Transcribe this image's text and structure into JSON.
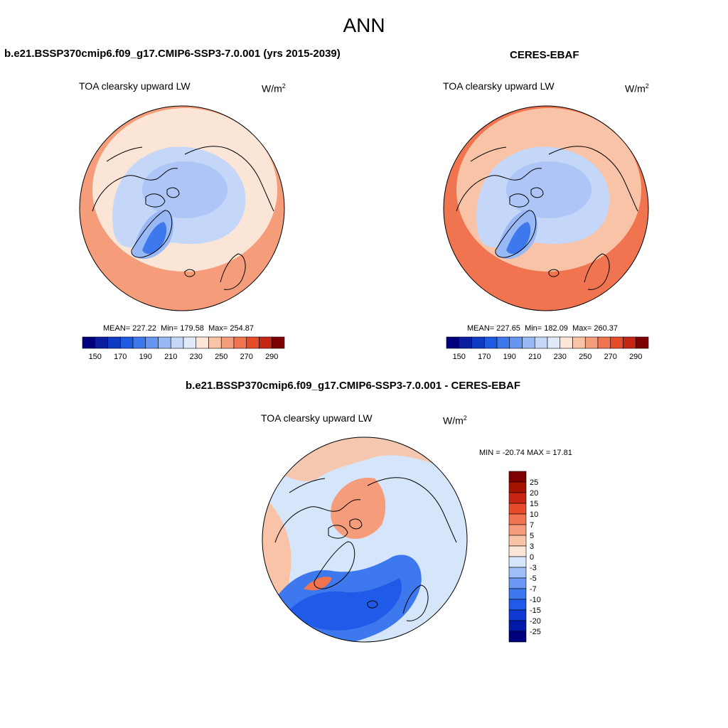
{
  "figure": {
    "season": "ANN"
  },
  "chart_data": [
    {
      "type": "heatmap",
      "projection": "polar stereographic (north)",
      "title": "b.e21.BSSP370cmip6.f09_g17.CMIP6-SSP3-7.0.001 (yrs 2015-2039)",
      "variable": "TOA clearsky upward LW",
      "units": "W/m",
      "units_exp": "2",
      "stats": {
        "mean_label": "MEAN=",
        "mean": "227.22",
        "min_label": "Min=",
        "min": "179.58",
        "max_label": "Max=",
        "max": "254.87"
      },
      "colorbar": {
        "levels": [
          150,
          160,
          170,
          180,
          190,
          200,
          210,
          220,
          230,
          240,
          250,
          260,
          270,
          280,
          290
        ],
        "tick_labels": [
          "150",
          "170",
          "190",
          "210",
          "230",
          "250",
          "270",
          "290"
        ],
        "colors": [
          "#00007f",
          "#0a1f9e",
          "#0f3bc4",
          "#1f5be0",
          "#3d78ec",
          "#6796f2",
          "#99b8f6",
          "#c5d7f8",
          "#e0eaf8",
          "#fbe5d6",
          "#f8c3a6",
          "#f59d7a",
          "#ef744f",
          "#e64b2a",
          "#c82615",
          "#7f0000"
        ]
      },
      "field_colors": {
        "ring": "#f59d7a",
        "mid": "#fbe5d6",
        "arctic": "#c5d7f8",
        "greenland": "#99b8f6",
        "greenland_core": "#3d78ec"
      }
    },
    {
      "type": "heatmap",
      "projection": "polar stereographic (north)",
      "title": "CERES-EBAF",
      "variable": "TOA clearsky upward LW",
      "units": "W/m",
      "units_exp": "2",
      "stats": {
        "mean_label": "MEAN=",
        "mean": "227.65",
        "min_label": "Min=",
        "min": "182.09",
        "max_label": "Max=",
        "max": "260.37"
      },
      "colorbar": {
        "levels": [
          150,
          160,
          170,
          180,
          190,
          200,
          210,
          220,
          230,
          240,
          250,
          260,
          270,
          280,
          290
        ],
        "tick_labels": [
          "150",
          "170",
          "190",
          "210",
          "230",
          "250",
          "270",
          "290"
        ],
        "colors": [
          "#00007f",
          "#0a1f9e",
          "#0f3bc4",
          "#1f5be0",
          "#3d78ec",
          "#6796f2",
          "#99b8f6",
          "#c5d7f8",
          "#e0eaf8",
          "#fbe5d6",
          "#f8c3a6",
          "#f59d7a",
          "#ef744f",
          "#e64b2a",
          "#c82615",
          "#7f0000"
        ]
      },
      "field_colors": {
        "ring": "#ef744f",
        "mid": "#f8c3a6",
        "arctic": "#c5d7f8",
        "greenland": "#99b8f6",
        "greenland_core": "#3d78ec"
      }
    },
    {
      "type": "heatmap",
      "projection": "polar stereographic (north)",
      "title": "b.e21.BSSP370cmip6.f09_g17.CMIP6-SSP3-7.0.001 - CERES-EBAF",
      "variable": "TOA clearsky upward LW",
      "units": "W/m",
      "units_exp": "2",
      "stats": {
        "text": "MIN = -20.74 MAX =  17.81",
        "min": "-20.74",
        "max": "17.81"
      },
      "colorbar": {
        "levels": [
          -25,
          -20,
          -15,
          -10,
          -7,
          -5,
          -3,
          0,
          3,
          5,
          7,
          10,
          15,
          20,
          25
        ],
        "tick_labels": [
          "25",
          "20",
          "15",
          "10",
          "7",
          "5",
          "3",
          "0",
          "-3",
          "-5",
          "-7",
          "-10",
          "-15",
          "-20",
          "-25"
        ],
        "colors": [
          "#00007f",
          "#0019a8",
          "#0f3bd4",
          "#1f5be8",
          "#3d78ee",
          "#6a98f2",
          "#9fbdf6",
          "#d6e6fa",
          "#fbe5d6",
          "#f8c3a6",
          "#f59d7a",
          "#ef744f",
          "#e64b2a",
          "#c82615",
          "#a51300",
          "#7f0000"
        ]
      },
      "field_colors": {
        "ocean": "#d6e6fa",
        "land_warm": "#f8c3a6",
        "siberia": "#f59d7a",
        "atlantic_cold": "#3d78ee",
        "atlantic_core": "#1f5be8"
      }
    }
  ]
}
